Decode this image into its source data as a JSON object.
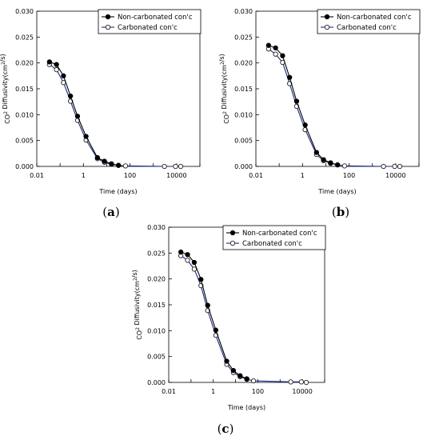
{
  "chart_data": [
    {
      "type": "line",
      "panel_label": "a",
      "xlabel": "Time (days)",
      "ylabel": "CO2 Diffusivity(cm2/s)",
      "xscale": "log",
      "xlim": [
        0.01,
        100000
      ],
      "ylim": [
        0,
        0.03
      ],
      "xticks": [
        "0.01",
        "1",
        "100",
        "10000"
      ],
      "yticks": [
        "0.000",
        "0.005",
        "0.010",
        "0.015",
        "0.020",
        "0.025",
        "0.030"
      ],
      "grid": false,
      "legend_position": "top-right",
      "series": [
        {
          "name": "Non-carbonated con'c",
          "marker": "filled-circle",
          "color": "#000000",
          "x": [
            0.035,
            0.07,
            0.14,
            0.28,
            0.56,
            1.3,
            4,
            8,
            16,
            32
          ],
          "y": [
            0.0202,
            0.0197,
            0.0175,
            0.0136,
            0.0097,
            0.0058,
            0.0017,
            0.001,
            0.0005,
            0.0002
          ]
        },
        {
          "name": "Carbonated con'c",
          "marker": "open-circle",
          "color": "#1a2a8a",
          "x": [
            0.035,
            0.07,
            0.14,
            0.28,
            0.56,
            1.3,
            4,
            8,
            16,
            32,
            64,
            3000,
            9000,
            15000
          ],
          "y": [
            0.0197,
            0.0187,
            0.0162,
            0.0126,
            0.0089,
            0.0051,
            0.0015,
            0.0008,
            0.0004,
            0.0002,
            0.0001,
            0.0,
            0.0,
            0.0
          ]
        }
      ]
    },
    {
      "type": "line",
      "panel_label": "b",
      "xlabel": "Time (days)",
      "ylabel": "CO2 Diffusivity(cm2/s)",
      "xscale": "log",
      "xlim": [
        0.01,
        100000
      ],
      "ylim": [
        0,
        0.03
      ],
      "xticks": [
        "0.01",
        "1",
        "100",
        "10000"
      ],
      "yticks": [
        "0.000",
        "0.005",
        "0.010",
        "0.015",
        "0.020",
        "0.025",
        "0.030"
      ],
      "grid": false,
      "legend_position": "top-right",
      "series": [
        {
          "name": "Non-carbonated con'c",
          "marker": "filled-circle",
          "color": "#000000",
          "x": [
            0.035,
            0.07,
            0.14,
            0.28,
            0.56,
            1.3,
            4,
            8,
            16,
            32
          ],
          "y": [
            0.0234,
            0.0229,
            0.0214,
            0.0172,
            0.0126,
            0.008,
            0.0027,
            0.0013,
            0.0007,
            0.0003
          ]
        },
        {
          "name": "Carbonated con'c",
          "marker": "open-circle",
          "color": "#1a2a8a",
          "x": [
            0.035,
            0.07,
            0.14,
            0.28,
            0.56,
            1.3,
            4,
            8,
            16,
            32,
            64,
            3000,
            9000,
            15000
          ],
          "y": [
            0.0227,
            0.0217,
            0.0201,
            0.016,
            0.0116,
            0.0071,
            0.0023,
            0.0011,
            0.0006,
            0.0003,
            0.0001,
            0.0,
            0.0,
            0.0
          ]
        }
      ]
    },
    {
      "type": "line",
      "panel_label": "c",
      "xlabel": "Time (days)",
      "ylabel": "CO2 Diffusivity(cm2/s)",
      "xscale": "log",
      "xlim": [
        0.01,
        100000
      ],
      "ylim": [
        0,
        0.03
      ],
      "xticks": [
        "0.01",
        "1",
        "100",
        "10000"
      ],
      "yticks": [
        "0.000",
        "0.005",
        "0.010",
        "0.015",
        "0.020",
        "0.025",
        "0.030"
      ],
      "grid": false,
      "legend_position": "top-right",
      "series": [
        {
          "name": "Non-carbonated con'c",
          "marker": "filled-circle",
          "color": "#000000",
          "x": [
            0.035,
            0.07,
            0.14,
            0.28,
            0.56,
            1.3,
            4,
            8,
            16,
            32
          ],
          "y": [
            0.0252,
            0.0247,
            0.0232,
            0.0199,
            0.0149,
            0.0101,
            0.0041,
            0.0023,
            0.0013,
            0.0007
          ]
        },
        {
          "name": "Carbonated con'c",
          "marker": "open-circle",
          "color": "#1a2a8a",
          "x": [
            0.035,
            0.07,
            0.14,
            0.28,
            0.56,
            1.3,
            4,
            8,
            16,
            32,
            64,
            3000,
            9000,
            15000
          ],
          "y": [
            0.0245,
            0.0236,
            0.0219,
            0.0187,
            0.0139,
            0.0091,
            0.0035,
            0.0019,
            0.0011,
            0.0006,
            0.0003,
            0.0001,
            0.0001,
            0.0
          ]
        }
      ]
    }
  ]
}
